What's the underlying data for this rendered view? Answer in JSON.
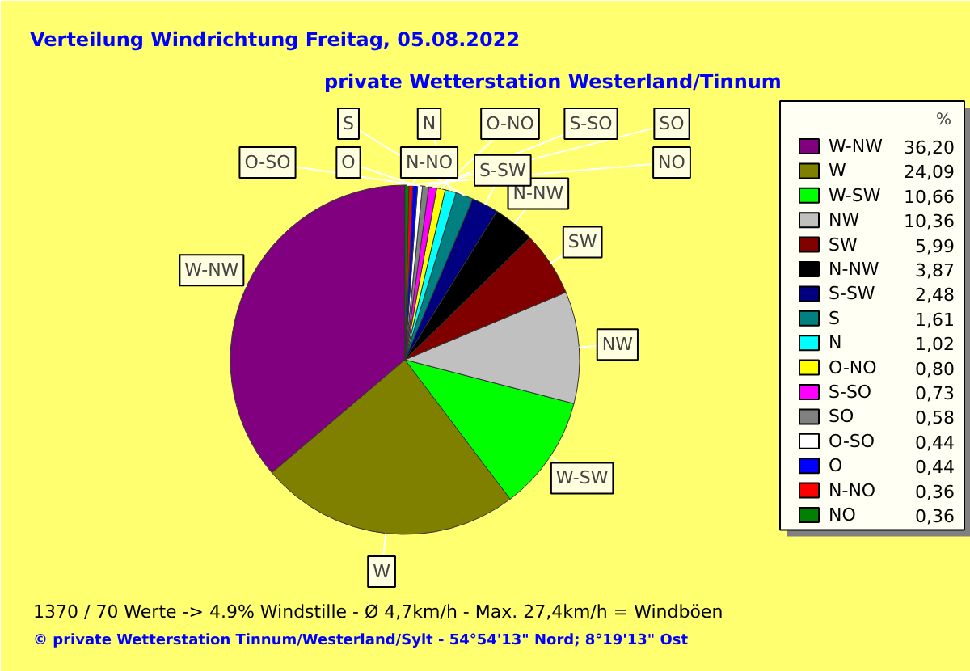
{
  "chart_data": {
    "type": "pie",
    "title": "Verteilung Windrichtung   Freitag, 05.08.2022",
    "subtitle": "private Wetterstation Westerland/Tinnum",
    "legend_title": "%",
    "legend": "right",
    "categories": [
      "W-NW",
      "W",
      "W-SW",
      "NW",
      "SW",
      "N-NW",
      "S-SW",
      "S",
      "N",
      "O-NO",
      "S-SO",
      "SO",
      "O-SO",
      "O",
      "N-NO",
      "NO"
    ],
    "values": [
      36.2,
      24.09,
      10.66,
      10.36,
      5.99,
      3.87,
      2.48,
      1.61,
      1.02,
      0.8,
      0.73,
      0.58,
      0.44,
      0.44,
      0.36,
      0.36
    ],
    "value_labels": [
      "36,20",
      "24,09",
      "10,66",
      "10,36",
      "5,99",
      "3,87",
      "2,48",
      "1,61",
      "1,02",
      "0,80",
      "0,73",
      "0,58",
      "0,44",
      "0,44",
      "0,36",
      "0,36"
    ],
    "colors": [
      "#800080",
      "#808000",
      "#00ff00",
      "#c0c0c0",
      "#800000",
      "#000000",
      "#000080",
      "#008080",
      "#00ffff",
      "#ffff00",
      "#ff00ff",
      "#808080",
      "#ffffff",
      "#0000ff",
      "#ff0000",
      "#008000"
    ],
    "annotations": [
      "1370 / 70 Werte  -> 4.9% Windstille   -   Ø 4,7km/h  -  Max. 27,4km/h = Windböen",
      "© private Wetterstation Tinnum/Westerland/Sylt  -  54°54'13\" Nord; 8°19'13\" Ost"
    ]
  }
}
